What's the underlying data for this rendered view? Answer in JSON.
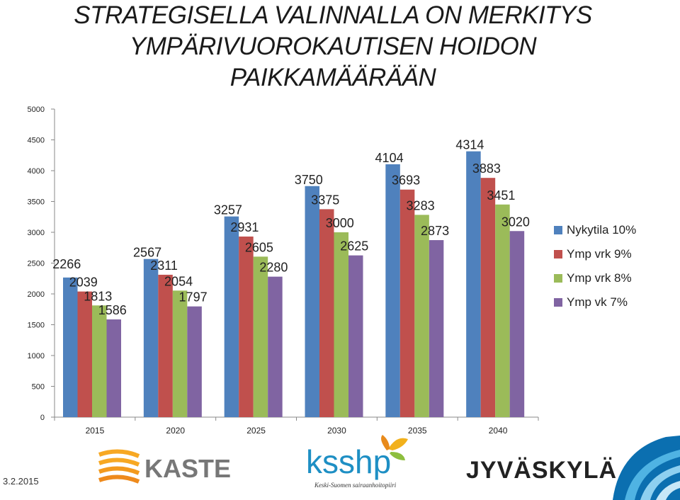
{
  "slide": {
    "title_line1": "STRATEGISELLA VALINNALLA ON MERKITYS",
    "title_line2": "YMPÄRIVUOROKAUTISEN HOIDON",
    "title_line3": "PAIKKAMÄÄRÄÄN",
    "date": "3.2.2015"
  },
  "logos": {
    "kaste": "KASTE",
    "ksshp": "ksshp",
    "ksshp_sub": "Keski-Suomen sairaanhoitopiiri",
    "jyvaskyla": "JYVÄSKYLÄ"
  },
  "chart_data": {
    "type": "bar",
    "categories": [
      "2015",
      "2020",
      "2025",
      "2030",
      "2035",
      "2040"
    ],
    "series": [
      {
        "name": "Nykytila 10%",
        "color": "#4F81BD",
        "values": [
          2266,
          2567,
          3257,
          3750,
          4104,
          4314
        ]
      },
      {
        "name": "Ymp vrk 9%",
        "color": "#C0504D",
        "values": [
          2039,
          2311,
          2931,
          3375,
          3693,
          3883
        ]
      },
      {
        "name": "Ymp vrk 8%",
        "color": "#9BBB59",
        "values": [
          1813,
          2054,
          2605,
          3000,
          3283,
          3451
        ]
      },
      {
        "name": "Ymp vk 7%",
        "color": "#8064A2",
        "values": [
          1586,
          1797,
          2280,
          2625,
          2873,
          3020
        ]
      }
    ],
    "ylim": [
      0,
      5000
    ],
    "yticks": [
      "0",
      "500",
      "1000",
      "1500",
      "2000",
      "2500",
      "3000",
      "3500",
      "4000",
      "4500",
      "5000"
    ],
    "xlabel": "",
    "ylabel": "",
    "grid": false,
    "legend_position": "right"
  }
}
